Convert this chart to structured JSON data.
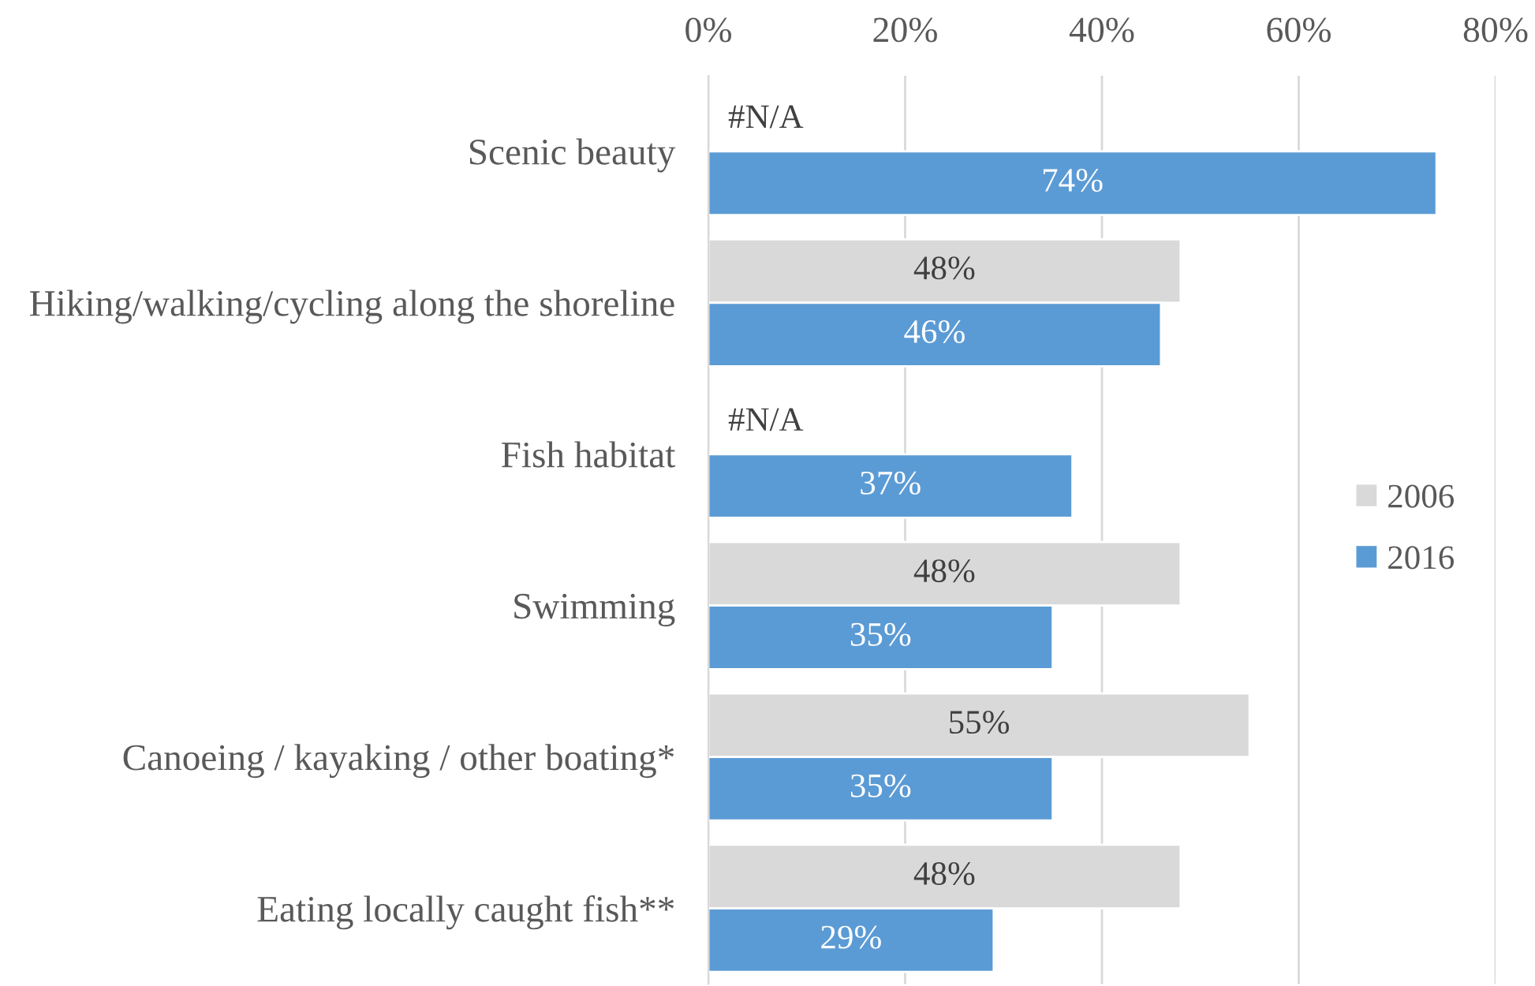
{
  "chart_data": {
    "type": "bar",
    "orientation": "horizontal",
    "categories": [
      "Scenic beauty",
      "Hiking/walking/cycling along the shoreline",
      "Fish habitat",
      "Swimming",
      "Canoeing / kayaking / other boating*",
      "Eating locally caught fish**"
    ],
    "series": [
      {
        "name": "2006",
        "color": "#d9d9d9",
        "values": [
          null,
          48,
          null,
          48,
          55,
          48
        ],
        "value_labels": [
          "#N/A",
          "48%",
          "#N/A",
          "48%",
          "55%",
          "48%"
        ]
      },
      {
        "name": "2016",
        "color": "#5b9bd5",
        "values": [
          74,
          46,
          37,
          35,
          35,
          29
        ],
        "value_labels": [
          "74%",
          "46%",
          "37%",
          "35%",
          "35%",
          "29%"
        ]
      }
    ],
    "xlim": [
      0,
      80
    ],
    "xticks": [
      {
        "value": 0,
        "label": "0%"
      },
      {
        "value": 20,
        "label": "20%"
      },
      {
        "value": 40,
        "label": "40%"
      },
      {
        "value": 60,
        "label": "60%"
      },
      {
        "value": 80,
        "label": "80%"
      }
    ],
    "grid": "x",
    "legend": "right"
  }
}
